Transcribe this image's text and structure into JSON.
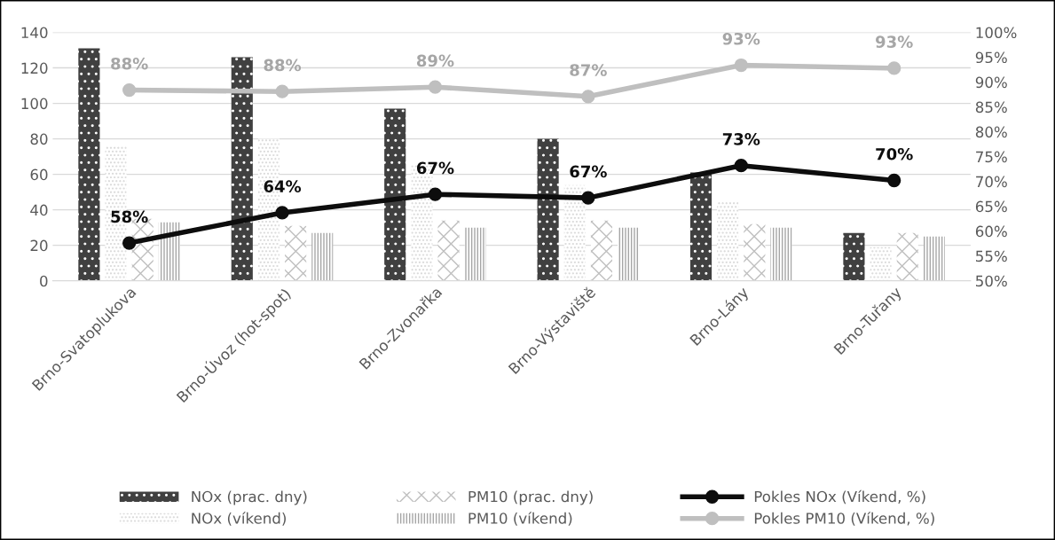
{
  "chart_data": {
    "type": "bar",
    "categories": [
      "Brno-Svatoplukova",
      "Brno-Úvoz (hot-spot)",
      "Brno-Zvonařka",
      "Brno-Výstaviště",
      "Brno-Lány",
      "Brno-Tuřany"
    ],
    "series": [
      {
        "name": "NOx (prac. dny)",
        "color": "#404040",
        "values": [
          131,
          126,
          97,
          80,
          61,
          27
        ]
      },
      {
        "name": "NOx (víkend)",
        "color": "#d9d9d9",
        "values": [
          76,
          80,
          65,
          54,
          45,
          19
        ]
      },
      {
        "name": "PM10 (prac. dny)",
        "color": "#bfbfbf",
        "values": [
          35,
          31,
          34,
          34,
          32,
          27
        ]
      },
      {
        "name": "PM10 (víkend)",
        "color": "#a6a6a6",
        "values": [
          33,
          27,
          30,
          30,
          30,
          25
        ]
      },
      {
        "name": "Pokles NOx (Víkend, %)",
        "type": "line",
        "axis": "y2",
        "color": "#0d0d0d",
        "marker": "circle",
        "values": [
          57.6,
          63.7,
          67.4,
          66.7,
          73.2,
          70.2
        ],
        "value_labels": [
          "58%",
          "64%",
          "67%",
          "67%",
          "73%",
          "70%"
        ]
      },
      {
        "name": "Pokles PM10 (Víkend, %)",
        "type": "line",
        "axis": "y2",
        "color": "#bfbfbf",
        "marker": "circle",
        "values": [
          88.4,
          88.1,
          89.0,
          87.1,
          93.4,
          92.8
        ],
        "value_labels": [
          "88%",
          "88%",
          "89%",
          "87%",
          "93%",
          "93%"
        ]
      }
    ],
    "ylim": [
      0,
      140
    ],
    "yticks": [
      0,
      20,
      40,
      60,
      80,
      100,
      120,
      140
    ],
    "y2lim": [
      50,
      100
    ],
    "y2ticks": [
      {
        "value": 50,
        "label": "50%"
      },
      {
        "value": 55,
        "label": "55%"
      },
      {
        "value": 60,
        "label": "60%"
      },
      {
        "value": 65,
        "label": "65%"
      },
      {
        "value": 70,
        "label": "70%"
      },
      {
        "value": 75,
        "label": "75%"
      },
      {
        "value": 80,
        "label": "80%"
      },
      {
        "value": 85,
        "label": "85%"
      },
      {
        "value": 90,
        "label": "90%"
      },
      {
        "value": 95,
        "label": "95%"
      },
      {
        "value": 100,
        "label": "100%"
      }
    ],
    "grid": "y",
    "legend": "bottom"
  }
}
